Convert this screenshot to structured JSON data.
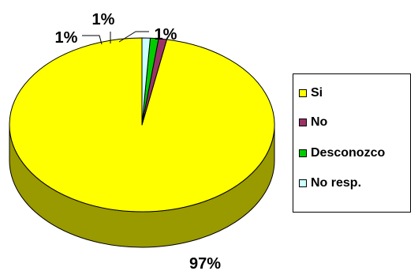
{
  "chart_data": {
    "type": "pie",
    "categories": [
      "Si",
      "No",
      "Desconozco",
      "No resp."
    ],
    "values": [
      97,
      1,
      1,
      1
    ],
    "data_labels": [
      "97%",
      "1%",
      "1%",
      "1%"
    ],
    "colors": [
      "#ffff00",
      "#993366",
      "#00cc00",
      "#ccffff"
    ],
    "side_colors": [
      "#999900",
      "#4d1a33",
      "#006600",
      "#669999"
    ],
    "legend_position": "right",
    "style": "3d"
  }
}
